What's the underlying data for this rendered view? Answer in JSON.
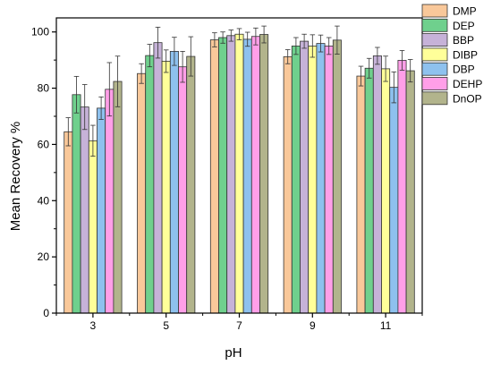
{
  "chart_data": {
    "type": "bar",
    "title": "",
    "xlabel": "pH",
    "ylabel": "Mean Recovery %",
    "categories": [
      "3",
      "5",
      "7",
      "9",
      "11"
    ],
    "ylim": [
      0,
      105
    ],
    "yticks": [
      0,
      20,
      40,
      60,
      80,
      100
    ],
    "grid": false,
    "legend_position": "right",
    "series": [
      {
        "name": "DMP",
        "color": "#f9c89a",
        "values": [
          64.5,
          85.2,
          97.2,
          91.2,
          84.3
        ],
        "errors": [
          5.0,
          3.5,
          2.5,
          2.5,
          3.5
        ]
      },
      {
        "name": "DEP",
        "color": "#6fd08d",
        "values": [
          77.7,
          91.6,
          98.0,
          95.0,
          87.1
        ],
        "errors": [
          6.5,
          4.0,
          2.0,
          3.0,
          3.5
        ]
      },
      {
        "name": "BBP",
        "color": "#c6b2d8",
        "values": [
          73.3,
          96.2,
          98.7,
          96.7,
          91.5
        ],
        "errors": [
          8.0,
          5.5,
          2.0,
          2.5,
          3.0
        ]
      },
      {
        "name": "DIBP",
        "color": "#ffff99",
        "values": [
          61.3,
          89.6,
          99.2,
          95.0,
          86.9
        ],
        "errors": [
          5.5,
          4.0,
          2.0,
          4.0,
          4.5
        ]
      },
      {
        "name": "DBP",
        "color": "#8ec1ee",
        "values": [
          72.9,
          93.1,
          97.4,
          95.9,
          80.3
        ],
        "errors": [
          4.0,
          5.0,
          2.5,
          3.0,
          5.5
        ]
      },
      {
        "name": "DEHP",
        "color": "#ff9fe8",
        "values": [
          79.6,
          87.6,
          98.4,
          95.0,
          89.9
        ],
        "errors": [
          9.5,
          5.5,
          3.0,
          3.0,
          3.5
        ]
      },
      {
        "name": "DnOP",
        "color": "#b2b48c",
        "values": [
          82.4,
          91.3,
          99.1,
          97.1,
          86.2
        ],
        "errors": [
          9.0,
          7.0,
          3.0,
          5.0,
          4.0
        ]
      }
    ]
  }
}
